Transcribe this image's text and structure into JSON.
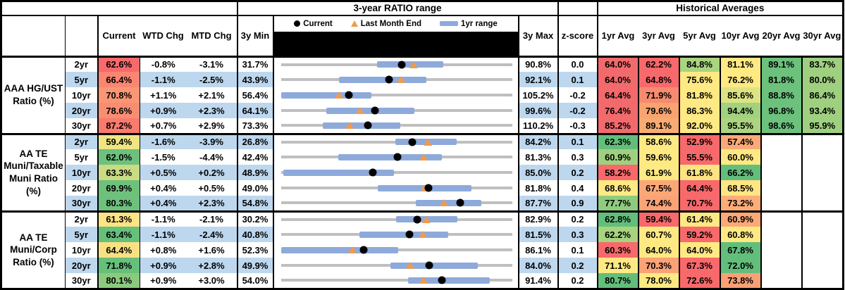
{
  "titles": {
    "range": "3-year RATIO range",
    "hist": "Historical Averages"
  },
  "cols": {
    "current": "Current",
    "wtd": "WTD Chg",
    "mtd": "MTD Chg",
    "min": "3y Min",
    "max": "3y Max",
    "z": "z-score",
    "avg": [
      "1yr Avg",
      "3yr Avg",
      "5yr Avg",
      "10yr Avg",
      "20yr Avg",
      "30yr Avg"
    ]
  },
  "legend": {
    "current": "Current",
    "last_month": "Last Month End",
    "range": "1yr range"
  },
  "colors": {
    "band": "#BDD7EE",
    "bar": "#8EAADB",
    "track": "#BFBFBF",
    "dot": "#000000",
    "triangle": "#EE9B4E",
    "heat_red": "#F8696B",
    "heat_yellow": "#FFE983",
    "heat_green": "#63BE7B"
  },
  "chart_data": {
    "type": "table",
    "sections": [
      {
        "label": "AAA HG/UST\nRatio (%)",
        "rows": [
          {
            "tenor": "2yr",
            "current": "62.6%",
            "current_bg": "#F8696B",
            "wtd": "-0.8%",
            "mtd": "-3.1%",
            "min": "31.7%",
            "max": "90.8%",
            "z": "0.0",
            "range": {
              "min": 31.7,
              "max": 90.8,
              "bar_lo": 56.3,
              "bar_hi": 73.2,
              "current": 62.6,
              "last_month": 65.7
            },
            "avgs": [
              {
                "v": "64.0%",
                "bg": "#F26A6C"
              },
              {
                "v": "62.2%",
                "bg": "#F8696B"
              },
              {
                "v": "84.8%",
                "bg": "#A9D480"
              },
              {
                "v": "81.1%",
                "bg": "#FFE983"
              },
              {
                "v": "89.1%",
                "bg": "#6CC17D"
              },
              {
                "v": "83.7%",
                "bg": "#9ED080"
              }
            ]
          },
          {
            "tenor": "5yr",
            "current": "66.4%",
            "current_bg": "#F98672",
            "wtd": "-1.1%",
            "mtd": "-2.5%",
            "min": "43.9%",
            "max": "92.1%",
            "z": "0.1",
            "range": {
              "min": 43.9,
              "max": 92.1,
              "bar_lo": 56.0,
              "bar_hi": 74.2,
              "current": 66.4,
              "last_month": 68.9
            },
            "avgs": [
              {
                "v": "64.0%",
                "bg": "#F26A6C"
              },
              {
                "v": "64.8%",
                "bg": "#F8696B"
              },
              {
                "v": "75.6%",
                "bg": "#FFE983"
              },
              {
                "v": "76.2%",
                "bg": "#FFE983"
              },
              {
                "v": "81.8%",
                "bg": "#6CC17D"
              },
              {
                "v": "80.0%",
                "bg": "#9ED080"
              }
            ]
          },
          {
            "tenor": "10yr",
            "current": "70.8%",
            "current_bg": "#FA9675",
            "wtd": "+1.1%",
            "mtd": "+2.1%",
            "min": "56.4%",
            "max": "105.2%",
            "z": "-0.2",
            "range": {
              "min": 56.4,
              "max": 105.2,
              "bar_lo": 56.4,
              "bar_hi": 75.5,
              "current": 70.8,
              "last_month": 68.7
            },
            "avgs": [
              {
                "v": "64.4%",
                "bg": "#F26A6C"
              },
              {
                "v": "71.9%",
                "bg": "#F68B6F"
              },
              {
                "v": "81.8%",
                "bg": "#FFE983"
              },
              {
                "v": "85.6%",
                "bg": "#DCE383"
              },
              {
                "v": "88.8%",
                "bg": "#6CC17D"
              },
              {
                "v": "86.4%",
                "bg": "#9ED080"
              }
            ]
          },
          {
            "tenor": "20yr",
            "current": "78.6%",
            "current_bg": "#F98D72",
            "wtd": "+0.9%",
            "mtd": "+2.3%",
            "min": "64.1%",
            "max": "99.6%",
            "z": "-0.2",
            "range": {
              "min": 64.1,
              "max": 99.6,
              "bar_lo": 71.1,
              "bar_hi": 84.6,
              "current": 78.6,
              "last_month": 76.3
            },
            "avgs": [
              {
                "v": "76.4%",
                "bg": "#F26A6C"
              },
              {
                "v": "79.6%",
                "bg": "#F8A370"
              },
              {
                "v": "86.3%",
                "bg": "#FFE983"
              },
              {
                "v": "94.4%",
                "bg": "#A2D17F"
              },
              {
                "v": "96.8%",
                "bg": "#6CC17D"
              },
              {
                "v": "93.4%",
                "bg": "#9ED080"
              }
            ]
          },
          {
            "tenor": "30yr",
            "current": "87.2%",
            "current_bg": "#F87B6E",
            "wtd": "+0.7%",
            "mtd": "+2.9%",
            "min": "73.3%",
            "max": "110.2%",
            "z": "-0.3",
            "range": {
              "min": 73.3,
              "max": 110.2,
              "bar_lo": 80.0,
              "bar_hi": 92.4,
              "current": 87.2,
              "last_month": 84.3
            },
            "avgs": [
              {
                "v": "85.2%",
                "bg": "#F26A6C"
              },
              {
                "v": "89.1%",
                "bg": "#F9AC72"
              },
              {
                "v": "92.0%",
                "bg": "#FFE983"
              },
              {
                "v": "95.5%",
                "bg": "#ACD480"
              },
              {
                "v": "98.6%",
                "bg": "#6CC17D"
              },
              {
                "v": "95.9%",
                "bg": "#9ED080"
              }
            ]
          }
        ]
      },
      {
        "label": "AA TE\nMuni/Taxable\nMuni Ratio\n(%)",
        "rows": [
          {
            "tenor": "2yr",
            "current": "59.4%",
            "current_bg": "#EFE683",
            "wtd": "-1.6%",
            "mtd": "-3.9%",
            "min": "26.8%",
            "max": "84.2%",
            "z": "0.1",
            "range": {
              "min": 26.8,
              "max": 84.2,
              "bar_lo": 55.3,
              "bar_hi": 70.4,
              "current": 59.4,
              "last_month": 63.3
            },
            "avgs": [
              {
                "v": "62.3%",
                "bg": "#63BE7B"
              },
              {
                "v": "58.6%",
                "bg": "#FFE983"
              },
              {
                "v": "52.9%",
                "bg": "#F8696B"
              },
              {
                "v": "57.4%",
                "bg": "#FCA977"
              },
              {
                "v": "",
                "bg": "#FFFFFF"
              },
              {
                "v": "",
                "bg": "#FFFFFF"
              }
            ]
          },
          {
            "tenor": "5yr",
            "current": "62.0%",
            "current_bg": "#6EC07D",
            "wtd": "-1.5%",
            "mtd": "-4.4%",
            "min": "42.4%",
            "max": "81.3%",
            "z": "0.3",
            "range": {
              "min": 42.4,
              "max": 81.3,
              "bar_lo": 52.1,
              "bar_hi": 69.5,
              "current": 62.0,
              "last_month": 66.4
            },
            "avgs": [
              {
                "v": "60.9%",
                "bg": "#A0D07F"
              },
              {
                "v": "59.6%",
                "bg": "#FFE983"
              },
              {
                "v": "55.5%",
                "bg": "#F8696B"
              },
              {
                "v": "60.0%",
                "bg": "#FFE983"
              },
              {
                "v": "",
                "bg": "#FFFFFF"
              },
              {
                "v": "",
                "bg": "#FFFFFF"
              }
            ]
          },
          {
            "tenor": "10yr",
            "current": "63.3%",
            "current_bg": "#C9DB83",
            "wtd": "+0.5%",
            "mtd": "+0.2%",
            "min": "48.9%",
            "max": "85.0%",
            "z": "0.2",
            "range": {
              "min": 48.9,
              "max": 85.0,
              "bar_lo": 49.3,
              "bar_hi": 66.6,
              "current": 63.3,
              "last_month": 63.1
            },
            "avgs": [
              {
                "v": "58.2%",
                "bg": "#F8696B"
              },
              {
                "v": "61.9%",
                "bg": "#FFE983"
              },
              {
                "v": "61.8%",
                "bg": "#FEE383"
              },
              {
                "v": "66.2%",
                "bg": "#63BE7B"
              },
              {
                "v": "",
                "bg": "#FFFFFF"
              },
              {
                "v": "",
                "bg": "#FFFFFF"
              }
            ]
          },
          {
            "tenor": "20yr",
            "current": "69.9%",
            "current_bg": "#6EC07D",
            "wtd": "+0.4%",
            "mtd": "+0.5%",
            "min": "49.0%",
            "max": "81.8%",
            "z": "0.4",
            "range": {
              "min": 49.0,
              "max": 81.8,
              "bar_lo": 62.7,
              "bar_hi": 76.1,
              "current": 69.9,
              "last_month": 69.4
            },
            "avgs": [
              {
                "v": "68.6%",
                "bg": "#FFE983"
              },
              {
                "v": "67.5%",
                "bg": "#FCA876"
              },
              {
                "v": "64.4%",
                "bg": "#F8696B"
              },
              {
                "v": "68.5%",
                "bg": "#FFE583"
              },
              {
                "v": "",
                "bg": "#FFFFFF"
              },
              {
                "v": "",
                "bg": "#FFFFFF"
              }
            ]
          },
          {
            "tenor": "30yr",
            "current": "80.3%",
            "current_bg": "#6EC07D",
            "wtd": "+0.4%",
            "mtd": "+2.3%",
            "min": "54.8%",
            "max": "87.7%",
            "z": "0.9",
            "range": {
              "min": 54.8,
              "max": 87.7,
              "bar_lo": 74.0,
              "bar_hi": 83.3,
              "current": 80.3,
              "last_month": 78.0
            },
            "avgs": [
              {
                "v": "77.7%",
                "bg": "#8FCB7E"
              },
              {
                "v": "74.4%",
                "bg": "#FBA376"
              },
              {
                "v": "70.7%",
                "bg": "#F8696B"
              },
              {
                "v": "73.2%",
                "bg": "#FCAD78"
              },
              {
                "v": "",
                "bg": "#FFFFFF"
              },
              {
                "v": "",
                "bg": "#FFFFFF"
              }
            ]
          }
        ]
      },
      {
        "label": "AA TE\nMuni/Corp\nRatio (%)",
        "rows": [
          {
            "tenor": "2yr",
            "current": "61.3%",
            "current_bg": "#FCE383",
            "wtd": "-1.1%",
            "mtd": "-2.1%",
            "min": "30.2%",
            "max": "82.9%",
            "z": "0.2",
            "range": {
              "min": 30.2,
              "max": 82.9,
              "bar_lo": 56.4,
              "bar_hi": 70.4,
              "current": 61.3,
              "last_month": 63.4
            },
            "avgs": [
              {
                "v": "62.8%",
                "bg": "#63BE7B"
              },
              {
                "v": "59.4%",
                "bg": "#F8696B"
              },
              {
                "v": "61.4%",
                "bg": "#FDE883"
              },
              {
                "v": "60.9%",
                "bg": "#FCA977"
              },
              {
                "v": "",
                "bg": "#FFFFFF"
              },
              {
                "v": "",
                "bg": "#FFFFFF"
              }
            ]
          },
          {
            "tenor": "5yr",
            "current": "63.4%",
            "current_bg": "#66BF7B",
            "wtd": "-1.1%",
            "mtd": "-2.4%",
            "min": "40.8%",
            "max": "81.5%",
            "z": "0.3",
            "range": {
              "min": 40.8,
              "max": 81.5,
              "bar_lo": 54.6,
              "bar_hi": 70.3,
              "current": 63.4,
              "last_month": 65.8
            },
            "avgs": [
              {
                "v": "62.2%",
                "bg": "#A8D37F"
              },
              {
                "v": "60.7%",
                "bg": "#FFE983"
              },
              {
                "v": "59.2%",
                "bg": "#F8696B"
              },
              {
                "v": "60.8%",
                "bg": "#FFE983"
              },
              {
                "v": "",
                "bg": "#FFFFFF"
              },
              {
                "v": "",
                "bg": "#FFFFFF"
              }
            ]
          },
          {
            "tenor": "10yr",
            "current": "64.4%",
            "current_bg": "#F8E183",
            "wtd": "+0.8%",
            "mtd": "+1.6%",
            "min": "52.3%",
            "max": "86.1%",
            "z": "0.1",
            "range": {
              "min": 52.3,
              "max": 86.1,
              "bar_lo": 52.4,
              "bar_hi": 69.5,
              "current": 64.4,
              "last_month": 62.8
            },
            "avgs": [
              {
                "v": "60.3%",
                "bg": "#F8696B"
              },
              {
                "v": "64.0%",
                "bg": "#FFE983"
              },
              {
                "v": "64.0%",
                "bg": "#FFE983"
              },
              {
                "v": "67.8%",
                "bg": "#63BE7B"
              },
              {
                "v": "",
                "bg": "#FFFFFF"
              },
              {
                "v": "",
                "bg": "#FFFFFF"
              }
            ]
          },
          {
            "tenor": "20yr",
            "current": "71.8%",
            "current_bg": "#66BF7B",
            "wtd": "+0.9%",
            "mtd": "+2.8%",
            "min": "49.9%",
            "max": "84.0%",
            "z": "0.2",
            "range": {
              "min": 49.9,
              "max": 84.0,
              "bar_lo": 66.1,
              "bar_hi": 79.0,
              "current": 71.8,
              "last_month": 69.0
            },
            "avgs": [
              {
                "v": "71.1%",
                "bg": "#FFE983"
              },
              {
                "v": "70.3%",
                "bg": "#FBA276"
              },
              {
                "v": "67.3%",
                "bg": "#F8696B"
              },
              {
                "v": "72.0%",
                "bg": "#63BE7B"
              },
              {
                "v": "",
                "bg": "#FFFFFF"
              },
              {
                "v": "",
                "bg": "#FFFFFF"
              }
            ]
          },
          {
            "tenor": "30yr",
            "current": "80.1%",
            "current_bg": "#8BCA7E",
            "wtd": "+0.9%",
            "mtd": "+3.0%",
            "min": "54.0%",
            "max": "91.4%",
            "z": "0.2",
            "range": {
              "min": 54.0,
              "max": 91.4,
              "bar_lo": 74.6,
              "bar_hi": 87.8,
              "current": 80.1,
              "last_month": 77.1
            },
            "avgs": [
              {
                "v": "80.7%",
                "bg": "#63BE7B"
              },
              {
                "v": "78.0%",
                "bg": "#FFE983"
              },
              {
                "v": "72.6%",
                "bg": "#F8696B"
              },
              {
                "v": "73.8%",
                "bg": "#FBA075"
              },
              {
                "v": "",
                "bg": "#FFFFFF"
              },
              {
                "v": "",
                "bg": "#FFFFFF"
              }
            ]
          }
        ]
      }
    ]
  }
}
